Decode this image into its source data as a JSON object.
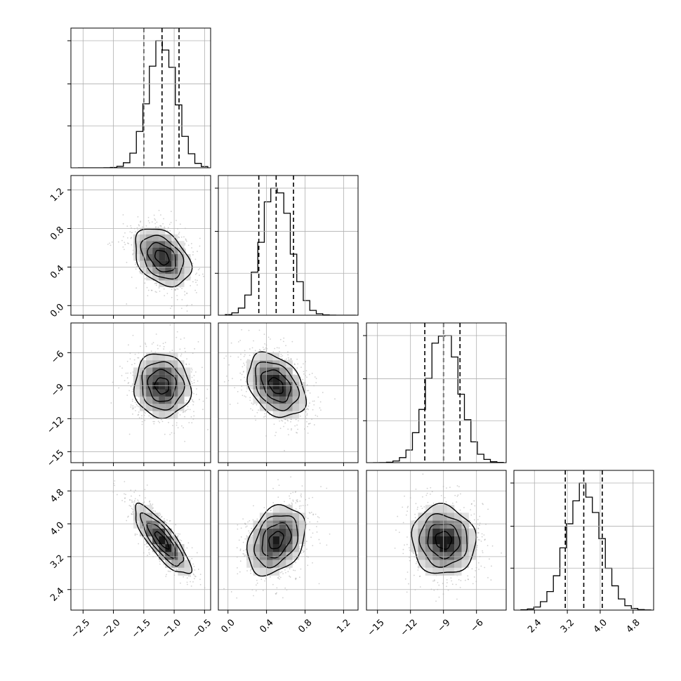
{
  "chart_data": {
    "type": "corner",
    "grid": true,
    "colors": {
      "line": "#000000",
      "grid": "#b0b0b0",
      "points": "#9a9a9a"
    },
    "parameters": [
      {
        "range": [
          -2.7,
          -0.4
        ],
        "ticks": [
          "−2.5",
          "−2.0",
          "−1.5",
          "−1.0",
          "−0.5"
        ],
        "tick_values": [
          -2.5,
          -2.0,
          -1.5,
          -1.0,
          -0.5
        ],
        "quantiles": [
          -1.5,
          -1.2,
          -0.92
        ],
        "mean": -1.2,
        "sd": 0.23
      },
      {
        "range": [
          -0.1,
          1.35
        ],
        "ticks": [
          "0.0",
          "0.4",
          "0.8",
          "1.2"
        ],
        "tick_values": [
          0.0,
          0.4,
          0.8,
          1.2
        ],
        "quantiles": [
          0.32,
          0.5,
          0.68
        ],
        "mean": 0.5,
        "sd": 0.15
      },
      {
        "range": [
          -16.0,
          -3.3
        ],
        "ticks": [
          "−15",
          "−12",
          "−9",
          "−6"
        ],
        "tick_values": [
          -15,
          -12,
          -9,
          -6
        ],
        "quantiles": [
          -10.7,
          -9.0,
          -7.5
        ],
        "mean": -9.0,
        "sd": 1.45
      },
      {
        "range": [
          1.9,
          5.3
        ],
        "ticks": [
          "2.4",
          "3.2",
          "4.0",
          "4.8"
        ],
        "tick_values": [
          2.4,
          3.2,
          4.0,
          4.8
        ],
        "quantiles": [
          3.15,
          3.6,
          4.05
        ],
        "mean": 3.6,
        "sd": 0.42
      }
    ],
    "correlations": [
      {
        "x": 0,
        "y": 1,
        "r": -0.35
      },
      {
        "x": 0,
        "y": 2,
        "r": -0.05
      },
      {
        "x": 1,
        "y": 2,
        "r": -0.35
      },
      {
        "x": 0,
        "y": 3,
        "r": -0.82
      },
      {
        "x": 1,
        "y": 3,
        "r": 0.3
      },
      {
        "x": 2,
        "y": 3,
        "r": -0.05
      }
    ],
    "histogram_bins": 20,
    "contour_levels": [
      0.118,
      0.393,
      0.675,
      0.865
    ]
  }
}
